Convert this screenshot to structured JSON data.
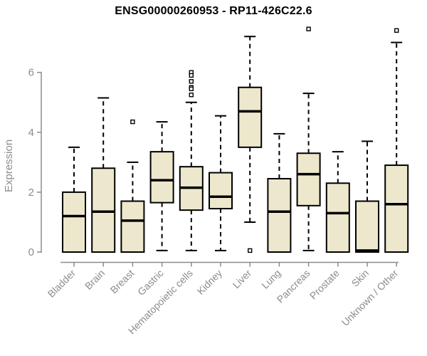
{
  "chart_data": {
    "type": "boxplot",
    "title": "ENSG00000260953 - RP11-426C22.6",
    "ylabel": "Expression",
    "xlabel": "",
    "ylim": [
      0,
      7.6
    ],
    "yticks": [
      0,
      2,
      4,
      6
    ],
    "grid": false,
    "legend": "none",
    "categories": [
      "Bladder",
      "Brain",
      "Breast",
      "Gastric",
      "Hematopoietic cells",
      "Kidney",
      "Liver",
      "Lung",
      "Pancreas",
      "Prostate",
      "Skin",
      "Unknown / Other"
    ],
    "series": [
      {
        "name": "Bladder",
        "low": 0,
        "q1": 0,
        "median": 1.2,
        "q3": 2.0,
        "high": 3.5,
        "outliers": []
      },
      {
        "name": "Brain",
        "low": 0,
        "q1": 0,
        "median": 1.35,
        "q3": 2.8,
        "high": 5.15,
        "outliers": []
      },
      {
        "name": "Breast",
        "low": 0,
        "q1": 0,
        "median": 1.05,
        "q3": 1.7,
        "high": 3.0,
        "outliers": [
          4.35
        ]
      },
      {
        "name": "Gastric",
        "low": 0.05,
        "q1": 1.65,
        "median": 2.4,
        "q3": 3.35,
        "high": 4.35,
        "outliers": []
      },
      {
        "name": "Hematopoietic cells",
        "low": 0.05,
        "q1": 1.4,
        "median": 2.15,
        "q3": 2.85,
        "high": 5.0,
        "outliers": [
          6.0,
          5.9,
          5.7,
          5.5,
          5.45,
          5.25
        ]
      },
      {
        "name": "Kidney",
        "low": 0.05,
        "q1": 1.45,
        "median": 1.85,
        "q3": 2.65,
        "high": 4.55,
        "outliers": []
      },
      {
        "name": "Liver",
        "low": 1.0,
        "q1": 3.5,
        "median": 4.7,
        "q3": 5.5,
        "high": 7.2,
        "outliers": [
          0.05
        ]
      },
      {
        "name": "Lung",
        "low": 0,
        "q1": 0,
        "median": 1.35,
        "q3": 2.45,
        "high": 3.95,
        "outliers": []
      },
      {
        "name": "Pancreas",
        "low": 0.05,
        "q1": 1.55,
        "median": 2.6,
        "q3": 3.3,
        "high": 5.3,
        "outliers": [
          7.45
        ]
      },
      {
        "name": "Prostate",
        "low": 0,
        "q1": 0,
        "median": 1.3,
        "q3": 2.3,
        "high": 3.35,
        "outliers": []
      },
      {
        "name": "Skin",
        "low": 0,
        "q1": 0,
        "median": 0.05,
        "q3": 1.7,
        "high": 3.7,
        "outliers": []
      },
      {
        "name": "Unknown / Other",
        "low": 0,
        "q1": 0,
        "median": 1.6,
        "q3": 2.9,
        "high": 7.0,
        "outliers": [
          7.4
        ]
      }
    ],
    "colors": {
      "box_fill": "#EDE8CD",
      "box_border": "#000000",
      "median": "#000000",
      "whisker": "#000000",
      "outlier_fill": "#ffffff",
      "axis": "#8c8c8c",
      "tick_label": "#8c8c8c",
      "title": "#000000",
      "background": "#ffffff"
    }
  }
}
